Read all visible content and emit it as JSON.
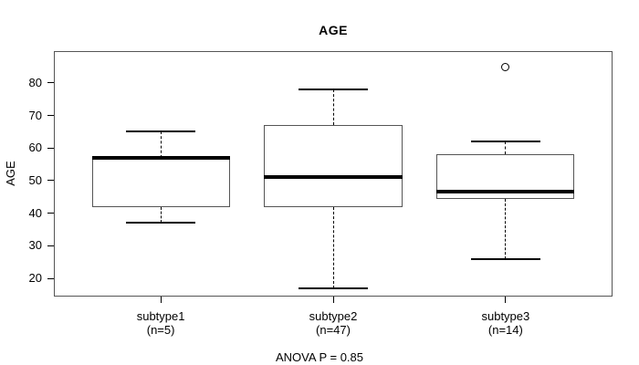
{
  "chart_data": {
    "type": "boxplot",
    "title": "AGE",
    "ylabel": "AGE",
    "annotation": "ANOVA P = 0.85",
    "ylim": [
      14.4,
      89.8
    ],
    "yticks": [
      20,
      30,
      40,
      50,
      60,
      70,
      80
    ],
    "grid": false,
    "groups": [
      {
        "label": "subtype1",
        "n_label": "(n=5)",
        "whisker_low": 37,
        "q1": 42,
        "median": 57,
        "q3": 57,
        "whisker_high": 65,
        "outliers": []
      },
      {
        "label": "subtype2",
        "n_label": "(n=47)",
        "whisker_low": 17,
        "q1": 42,
        "median": 51,
        "q3": 67,
        "whisker_high": 78,
        "outliers": []
      },
      {
        "label": "subtype3",
        "n_label": "(n=14)",
        "whisker_low": 26,
        "q1": 44.5,
        "median": 46.5,
        "q3": 58,
        "whisker_high": 62,
        "outliers": [
          85
        ]
      }
    ],
    "colors": {
      "line": "#000000",
      "box_border": "#555555",
      "plot_border": "#555555",
      "background": "#ffffff"
    }
  }
}
